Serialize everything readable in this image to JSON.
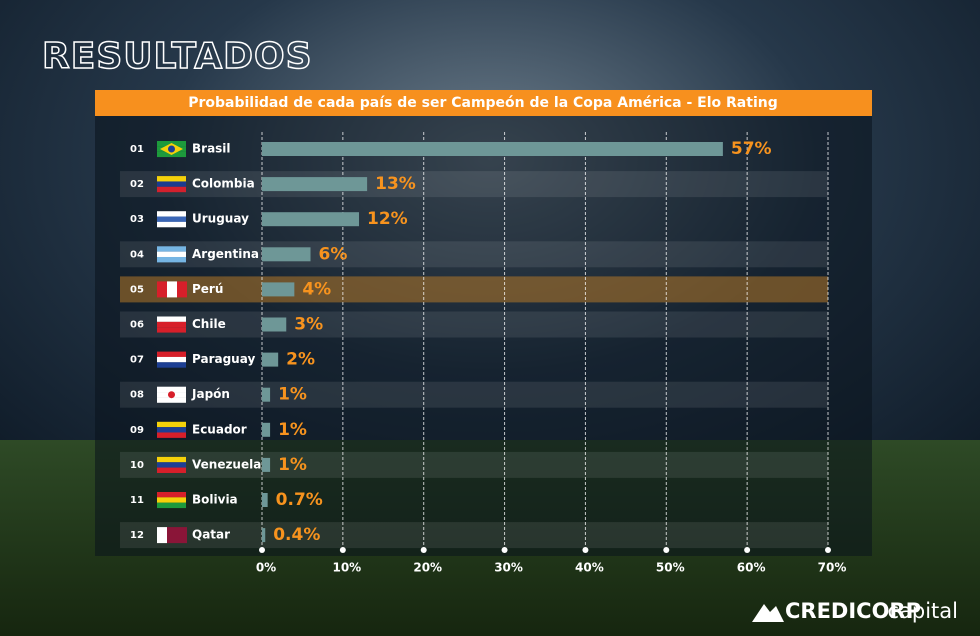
{
  "header": {
    "title": "RESULTADOS"
  },
  "chart_data": {
    "type": "bar",
    "orientation": "horizontal",
    "title": "Probabilidad de cada país de ser Campeón de la Copa América - Elo Rating",
    "ranks": [
      "01",
      "02",
      "03",
      "04",
      "05",
      "06",
      "07",
      "08",
      "09",
      "10",
      "11",
      "12"
    ],
    "categories": [
      "Brasil",
      "Colombia",
      "Uruguay",
      "Argentina",
      "Perú",
      "Chile",
      "Paraguay",
      "Japón",
      "Ecuador",
      "Venezuela",
      "Bolivia",
      "Qatar"
    ],
    "values": [
      57,
      13,
      12,
      6,
      4,
      3,
      2,
      1,
      1,
      1,
      0.7,
      0.4
    ],
    "value_labels": [
      "57%",
      "13%",
      "12%",
      "6%",
      "4%",
      "3%",
      "2%",
      "1%",
      "1%",
      "1%",
      "0.7%",
      "0.4%"
    ],
    "color": "#6e9797",
    "xlim": [
      0,
      70
    ],
    "xticks": [
      {
        "value": 0,
        "label": "0%"
      },
      {
        "value": 10,
        "label": "10%"
      },
      {
        "value": 20,
        "label": "20%"
      },
      {
        "value": 30,
        "label": "30%"
      },
      {
        "value": 40,
        "label": "40%"
      },
      {
        "value": 50,
        "label": "50%"
      },
      {
        "value": 60,
        "label": "60%"
      },
      {
        "value": 70,
        "label": "70%"
      }
    ],
    "grid": true
  },
  "footer": {
    "logo_bold": "CREDICORP",
    "logo_light": "capital"
  }
}
